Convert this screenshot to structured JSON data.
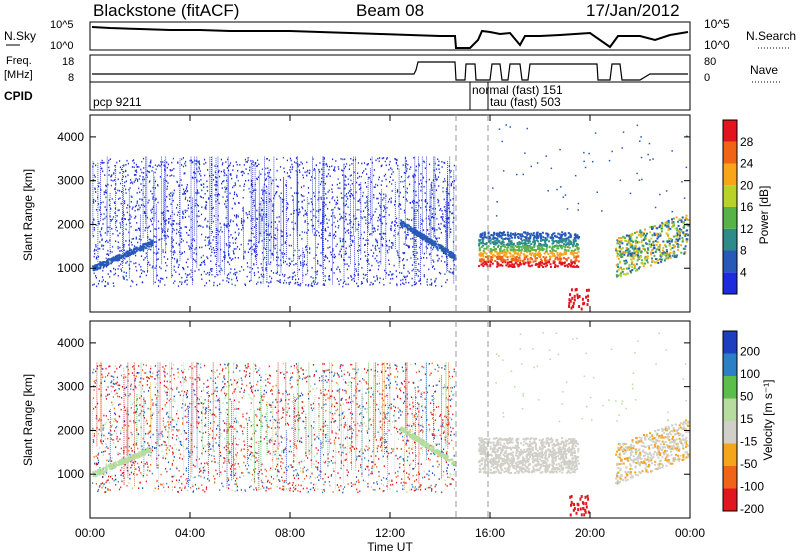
{
  "header": {
    "station": "Blackstone (fitACF)",
    "beam": "Beam 08",
    "date": "17/Jan/2012"
  },
  "summary_panel": {
    "left_top_label": "N.Sky",
    "left_top_ticks": [
      "10^5",
      "10^0"
    ],
    "right_top_label": "N.Search",
    "right_top_ticks": [
      "10^5",
      "10^0"
    ],
    "left_mid_label_1": "Freq.",
    "left_mid_label_2": "[MHz]",
    "left_mid_ticks": [
      "18",
      "8"
    ],
    "right_mid_label": "Nave",
    "right_mid_ticks": [
      "80",
      "0"
    ],
    "cpid_label": "CPID",
    "cpid_entries": [
      "pcp 9211",
      "normal (fast) 151",
      "tau (fast) 503"
    ]
  },
  "colors": {
    "power_scale": [
      "#1d2bdd",
      "#2659b8",
      "#2f8a8a",
      "#57b348",
      "#b8d22a",
      "#f8a51a",
      "#f06418",
      "#e2151f"
    ],
    "velocity_scale": [
      "#e0181d",
      "#f0641a",
      "#f5a51c",
      "#d0d0c8",
      "#b7dca0",
      "#5bbd4a",
      "#2b7fc4",
      "#1d3fbf"
    ]
  },
  "chart_data": [
    {
      "type": "heatmap",
      "title": "Power",
      "xlabel": "",
      "ylabel": "Slant Range [km]",
      "x_ticks": [
        "00:00",
        "04:00",
        "08:00",
        "12:00",
        "16:00",
        "20:00",
        "00:00"
      ],
      "y_ticks": [
        1000,
        2000,
        3000,
        4000
      ],
      "ylim": [
        0,
        4500
      ],
      "colorbar_label": "Power [dB]",
      "colorbar_ticks": [
        4,
        8,
        12,
        16,
        20,
        24,
        28
      ],
      "colorbar_range": [
        0,
        32
      ]
    },
    {
      "type": "heatmap",
      "title": "Velocity",
      "xlabel": "Time UT",
      "ylabel": "Slant Range [km]",
      "x_ticks": [
        "00:00",
        "04:00",
        "08:00",
        "12:00",
        "16:00",
        "20:00",
        "00:00"
      ],
      "y_ticks": [
        1000,
        2000,
        3000,
        4000
      ],
      "ylim": [
        0,
        4500
      ],
      "colorbar_label": "Velocity [m s⁻¹]",
      "colorbar_ticks": [
        200,
        100,
        50,
        15,
        -15,
        -50,
        -100,
        -200
      ]
    }
  ]
}
